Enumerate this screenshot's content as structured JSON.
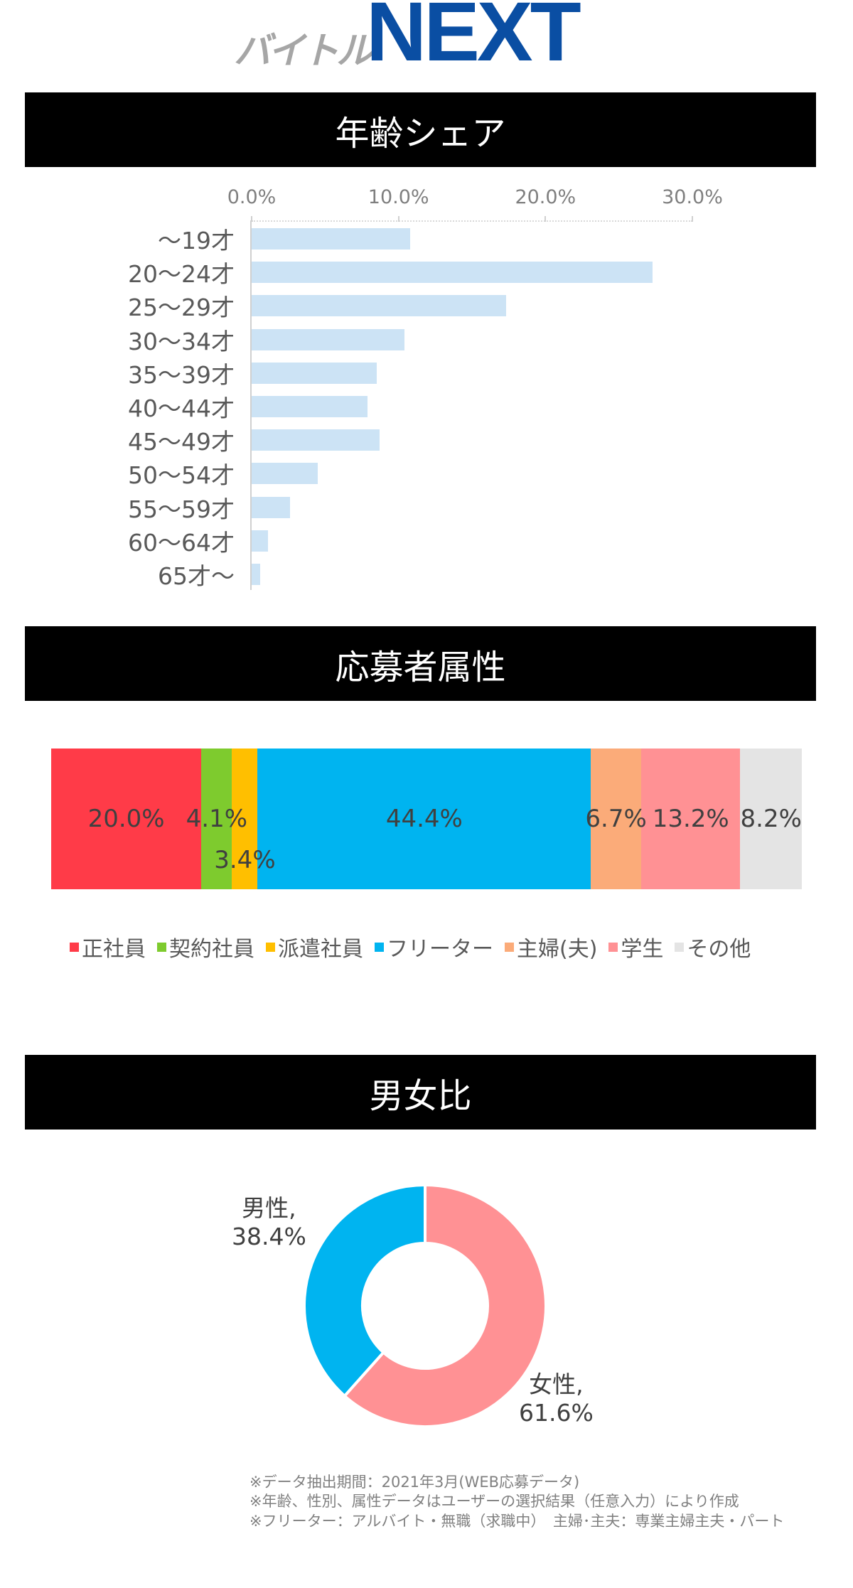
{
  "logo": {
    "prefix": "バイトル",
    "main": "NEXT"
  },
  "sections": {
    "age": {
      "title": "年齢シェア"
    },
    "attribute": {
      "title": "応募者属性"
    },
    "gender": {
      "title": "男女比"
    }
  },
  "colors": {
    "age_bar": "#cce3f5",
    "seishain": "#ff3b48",
    "keiyaku": "#7ecb2e",
    "haken": "#ffbf00",
    "freeter": "#00b4f0",
    "shufu": "#fbab79",
    "gakusei": "#ff9194",
    "sonota": "#e4e4e4",
    "male": "#00b4f0",
    "female": "#ff9194",
    "logo_blue": "#0a4ea3"
  },
  "chart_data": [
    {
      "type": "bar",
      "orientation": "horizontal",
      "title": "年齢シェア",
      "categories": [
        "～19才",
        "20～24才",
        "25～29才",
        "30～34才",
        "35～39才",
        "40～44才",
        "45～49才",
        "50～54才",
        "55～59才",
        "60～64才",
        "65才～"
      ],
      "values": [
        10.8,
        27.3,
        17.3,
        10.4,
        8.5,
        7.9,
        8.7,
        4.5,
        2.6,
        1.1,
        0.6
      ],
      "xlabel": "",
      "ylabel": "",
      "xlim": [
        0,
        30
      ],
      "x_ticks": [
        "0.0%",
        "10.0%",
        "20.0%",
        "30.0%"
      ],
      "x_axis_position": "top",
      "grid": false,
      "legend": null
    },
    {
      "type": "bar",
      "orientation": "horizontal",
      "stacked": "100%",
      "title": "応募者属性",
      "series": [
        {
          "name": "正社員",
          "value": 20.0,
          "label": "20.0%",
          "color": "#ff3b48"
        },
        {
          "name": "契約社員",
          "value": 4.1,
          "label": "4.1%",
          "color": "#7ecb2e"
        },
        {
          "name": "派遣社員",
          "value": 3.4,
          "label": "3.4%",
          "color": "#ffbf00"
        },
        {
          "name": "フリーター",
          "value": 44.4,
          "label": "44.4%",
          "color": "#00b4f0"
        },
        {
          "name": "主婦(夫)",
          "value": 6.7,
          "label": "6.7%",
          "color": "#fbab79"
        },
        {
          "name": "学生",
          "value": 13.2,
          "label": "13.2%",
          "color": "#ff9194"
        },
        {
          "name": "その他",
          "value": 8.2,
          "label": "8.2%",
          "color": "#e4e4e4"
        }
      ],
      "legend_position": "bottom"
    },
    {
      "type": "pie",
      "donut": true,
      "title": "男女比",
      "categories": [
        "男性",
        "女性"
      ],
      "values": [
        38.4,
        61.6
      ],
      "labels": [
        "男性,",
        "女性,"
      ],
      "value_labels": [
        "38.4%",
        "61.6%"
      ],
      "colors": [
        "#00b4f0",
        "#ff9194"
      ]
    }
  ],
  "footnotes": [
    "※データ抽出期間：2021年3月(WEB応募データ)",
    "※年齢、性別、属性データはユーザーの選択結果（任意入力）により作成",
    "※フリーター：アルバイト・無職（求職中）　主婦･主夫：専業主婦主夫・パート"
  ]
}
